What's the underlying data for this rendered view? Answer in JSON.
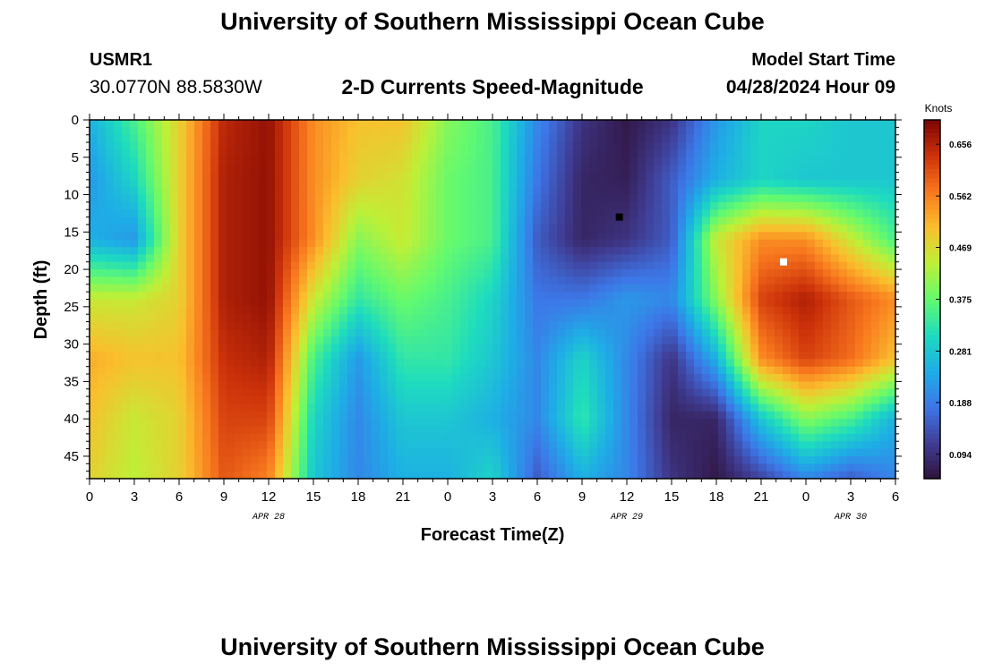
{
  "header": {
    "title": "University of Southern Mississippi Ocean Cube",
    "station_id": "USMR1",
    "coords": "30.0770N  88.5830W",
    "subtitle": "2-D Currents Speed-Magnitude",
    "start_label": "Model Start Time",
    "start_value": "04/28/2024 Hour 09"
  },
  "footer": {
    "title": "University of Southern Mississippi Ocean Cube"
  },
  "chart_data": {
    "type": "heatmap",
    "title": "2-D Currents Speed-Magnitude",
    "xlabel": "Forecast Time(Z)",
    "ylabel": "Depth (ft)",
    "x_start": "2024-04-28 00Z",
    "x_end": "2024-04-30 06Z",
    "x_tick_labels": [
      "0",
      "3",
      "6",
      "9",
      "12",
      "15",
      "18",
      "21",
      "0",
      "3",
      "6",
      "9",
      "12",
      "15",
      "18",
      "21",
      "0",
      "3",
      "6"
    ],
    "date_labels": [
      {
        "text": "APR 28",
        "hour": 12
      },
      {
        "text": "APR 29",
        "hour": 12
      },
      {
        "text": "APR 30",
        "hour": 3
      }
    ],
    "y_ticks": [
      0,
      5,
      10,
      15,
      20,
      25,
      30,
      35,
      40,
      45
    ],
    "ylim": [
      0,
      48
    ],
    "colorbar": {
      "title": "Knots",
      "tick_labels": [
        "0.656",
        "0.562",
        "0.469",
        "0.375",
        "0.281",
        "0.188",
        "0.094"
      ],
      "range": [
        0.05,
        0.7
      ]
    },
    "markers": [
      {
        "name": "min",
        "color": "#000000",
        "time_hours": 35.5,
        "depth": 13
      },
      {
        "name": "max",
        "color": "#ffffff",
        "time_hours": 46.5,
        "depth": 19
      }
    ],
    "x_hours": [
      0,
      3,
      6,
      9,
      12,
      15,
      18,
      21,
      24,
      27,
      30,
      33,
      36,
      39,
      42,
      45,
      48,
      51,
      54
    ],
    "depths": [
      0,
      8,
      16,
      24,
      32,
      40,
      48
    ],
    "values": [
      [
        0.25,
        0.35,
        0.48,
        0.65,
        0.68,
        0.55,
        0.5,
        0.5,
        0.4,
        0.35,
        0.2,
        0.1,
        0.06,
        0.1,
        0.22,
        0.3,
        0.3,
        0.28,
        0.28
      ],
      [
        0.22,
        0.3,
        0.48,
        0.66,
        0.68,
        0.55,
        0.48,
        0.46,
        0.38,
        0.35,
        0.18,
        0.08,
        0.07,
        0.15,
        0.25,
        0.3,
        0.28,
        0.28,
        0.28
      ],
      [
        0.25,
        0.22,
        0.48,
        0.66,
        0.68,
        0.55,
        0.4,
        0.45,
        0.38,
        0.35,
        0.15,
        0.08,
        0.1,
        0.15,
        0.45,
        0.55,
        0.55,
        0.45,
        0.35
      ],
      [
        0.45,
        0.45,
        0.48,
        0.66,
        0.68,
        0.45,
        0.33,
        0.38,
        0.35,
        0.3,
        0.18,
        0.18,
        0.22,
        0.2,
        0.4,
        0.62,
        0.66,
        0.6,
        0.55
      ],
      [
        0.52,
        0.5,
        0.5,
        0.64,
        0.66,
        0.35,
        0.22,
        0.33,
        0.33,
        0.28,
        0.2,
        0.3,
        0.2,
        0.1,
        0.25,
        0.55,
        0.62,
        0.58,
        0.5
      ],
      [
        0.5,
        0.45,
        0.48,
        0.62,
        0.62,
        0.3,
        0.2,
        0.28,
        0.28,
        0.25,
        0.2,
        0.33,
        0.2,
        0.08,
        0.08,
        0.28,
        0.4,
        0.35,
        0.25
      ],
      [
        0.48,
        0.44,
        0.48,
        0.6,
        0.56,
        0.28,
        0.2,
        0.25,
        0.25,
        0.3,
        0.15,
        0.25,
        0.2,
        0.1,
        0.06,
        0.12,
        0.2,
        0.15,
        0.2
      ]
    ]
  }
}
